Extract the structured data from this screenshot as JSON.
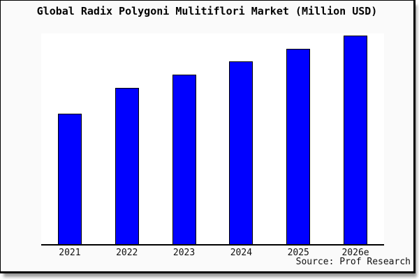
{
  "chart_data": {
    "type": "bar",
    "title": "Global Radix Polygoni Mulitiflori Market (Million USD)",
    "categories": [
      "2021",
      "2022",
      "2023",
      "2024",
      "2025",
      "2026e"
    ],
    "values": [
      62.7,
      75.0,
      81.3,
      87.7,
      93.7,
      100.0
    ],
    "value_scale": "relative units estimated from bar heights; no y-axis labels shown (2026e = 100)",
    "xlabel": "",
    "ylabel": "",
    "ylim": [
      0,
      101
    ],
    "grid": false,
    "legend": false,
    "y_axis_visible": false,
    "bar_color": "#0000ff",
    "bar_border_color": "#000000"
  },
  "footer": {
    "source_label": "Source: Prof Research"
  },
  "colors": {
    "panel_background": "#fafafa",
    "plot_background": "#ffffff",
    "axis_line": "#000000",
    "panel_border": "#000000",
    "shadow": "#9a9a9a"
  }
}
